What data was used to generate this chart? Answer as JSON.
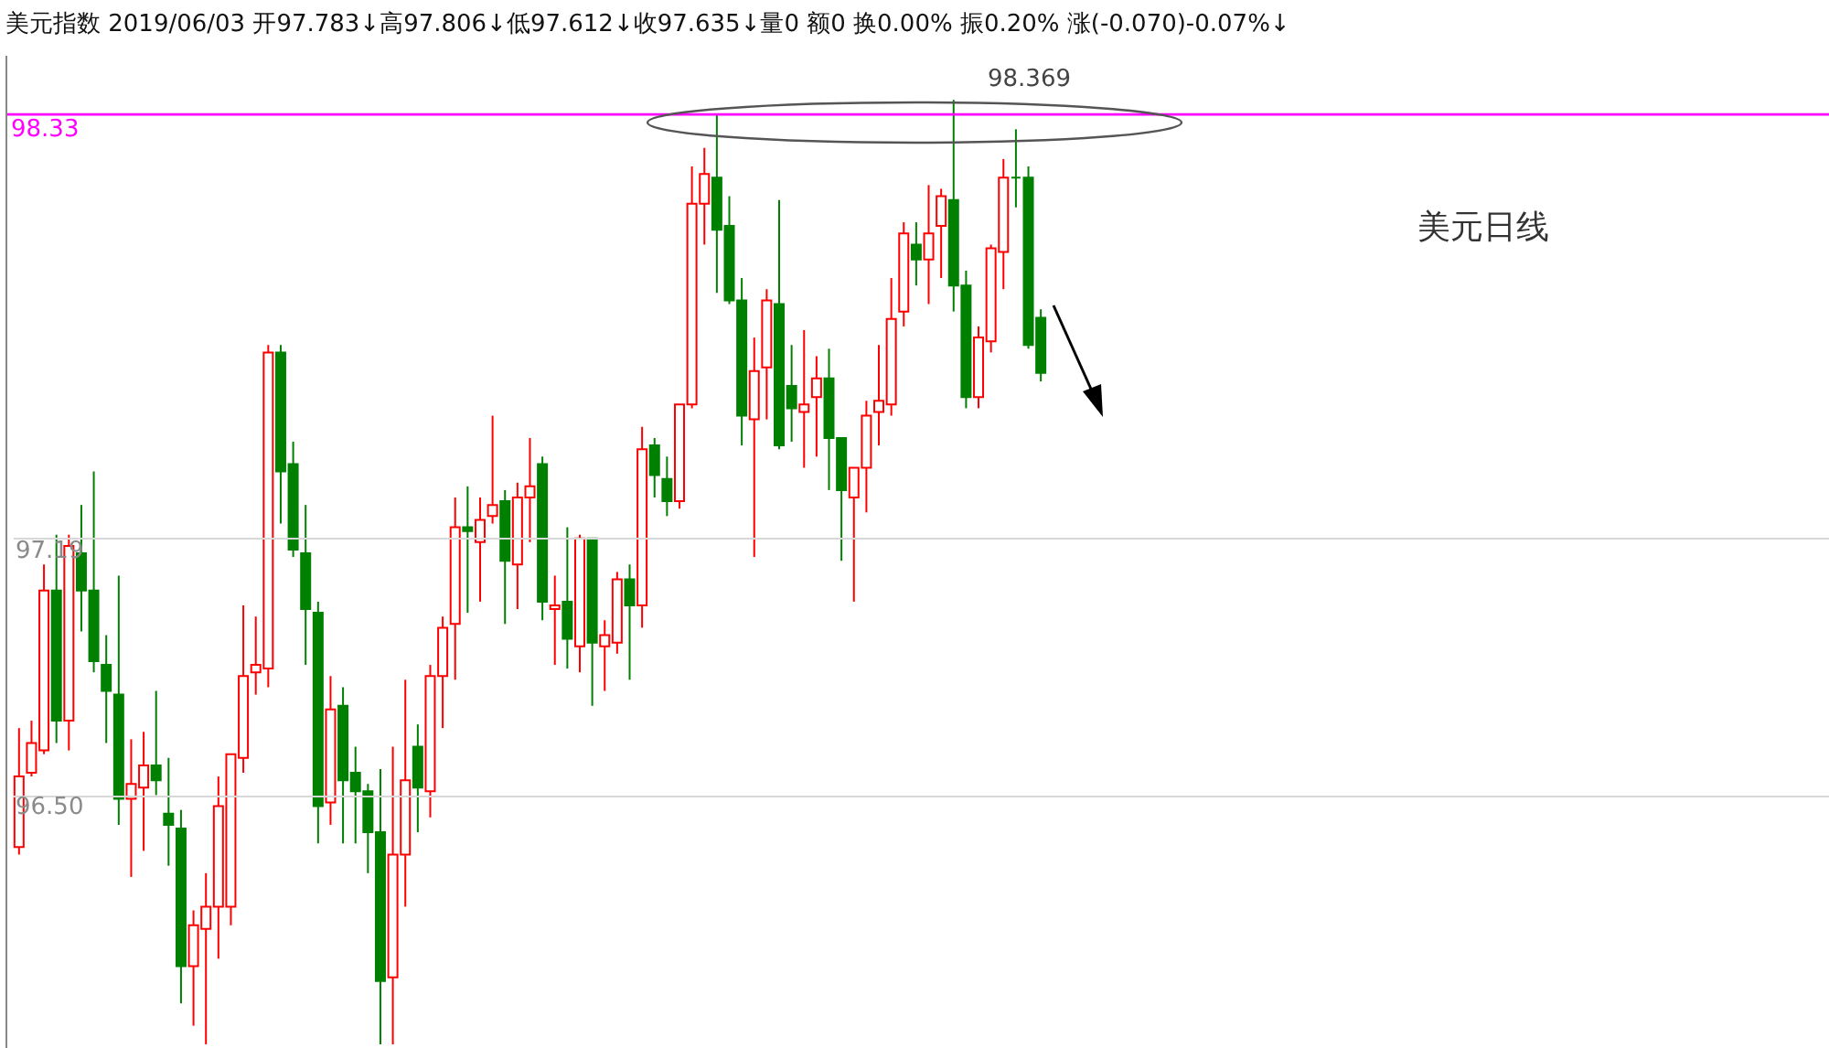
{
  "chart_data": {
    "type": "candlestick",
    "title": "美元指数 2019/06/03 开97.783↓高97.806↓低97.612↓收97.635↓量0 额0 换0.00% 振0.20% 涨(-0.070)-0.07%↓",
    "categories": [
      null,
      null,
      null,
      null,
      null,
      null,
      null,
      null,
      null,
      null,
      null,
      null,
      null,
      null,
      null,
      null,
      null,
      null,
      null,
      null,
      null,
      null,
      null,
      null,
      null,
      null,
      null,
      null,
      null,
      null,
      null,
      null,
      null,
      null,
      null,
      null,
      null,
      null,
      null,
      null,
      null,
      null,
      null,
      null,
      null,
      null,
      null,
      null,
      null,
      null,
      null,
      null,
      null,
      null,
      null,
      null,
      null,
      null,
      null,
      null,
      null,
      null,
      null,
      null,
      null,
      null,
      null,
      null,
      null,
      null,
      null,
      null,
      null,
      null,
      null,
      null,
      null,
      null,
      null,
      null,
      null,
      null,
      null
    ],
    "ohlc": [
      [
        96.36,
        96.68,
        96.34,
        96.55
      ],
      [
        96.56,
        96.7,
        96.55,
        96.64
      ],
      [
        96.62,
        97.12,
        96.61,
        97.05
      ],
      [
        97.05,
        97.2,
        96.64,
        96.7
      ],
      [
        96.7,
        97.2,
        96.62,
        97.17
      ],
      [
        97.15,
        97.28,
        96.94,
        97.05
      ],
      [
        97.05,
        97.37,
        96.83,
        96.86
      ],
      [
        96.85,
        96.93,
        96.64,
        96.78
      ],
      [
        96.77,
        97.09,
        96.42,
        96.49
      ],
      [
        96.49,
        96.65,
        96.28,
        96.53
      ],
      [
        96.52,
        96.67,
        96.35,
        96.58
      ],
      [
        96.58,
        96.78,
        96.5,
        96.54
      ],
      [
        96.45,
        96.6,
        96.31,
        96.42
      ],
      [
        96.41,
        96.46,
        95.94,
        96.04
      ],
      [
        96.04,
        96.19,
        95.88,
        96.15
      ],
      [
        96.14,
        96.29,
        95.83,
        96.2
      ],
      [
        96.2,
        96.55,
        96.06,
        96.47
      ],
      [
        96.2,
        96.61,
        96.15,
        96.61
      ],
      [
        96.6,
        97.01,
        96.56,
        96.82
      ],
      [
        96.83,
        96.98,
        96.77,
        96.85
      ],
      [
        96.84,
        97.71,
        96.79,
        97.69
      ],
      [
        97.69,
        97.71,
        97.23,
        97.37
      ],
      [
        97.39,
        97.45,
        97.14,
        97.16
      ],
      [
        97.15,
        97.28,
        96.85,
        97.0
      ],
      [
        96.99,
        97.02,
        96.37,
        96.47
      ],
      [
        96.48,
        96.82,
        96.42,
        96.73
      ],
      [
        96.74,
        96.79,
        96.37,
        96.54
      ],
      [
        96.56,
        96.63,
        96.37,
        96.51
      ],
      [
        96.51,
        96.53,
        96.29,
        96.4
      ],
      [
        96.4,
        96.57,
        95.83,
        96.0
      ],
      [
        96.01,
        96.63,
        95.83,
        96.34
      ],
      [
        96.34,
        96.81,
        96.2,
        96.54
      ],
      [
        96.63,
        96.69,
        96.4,
        96.52
      ],
      [
        96.51,
        96.85,
        96.44,
        96.82
      ],
      [
        96.82,
        96.98,
        96.68,
        96.95
      ],
      [
        96.96,
        97.3,
        96.81,
        97.22
      ],
      [
        97.22,
        97.33,
        96.99,
        97.21
      ],
      [
        97.18,
        97.3,
        97.02,
        97.24
      ],
      [
        97.25,
        97.52,
        97.23,
        97.28
      ],
      [
        97.29,
        97.32,
        96.96,
        97.13
      ],
      [
        97.12,
        97.34,
        97.0,
        97.3
      ],
      [
        97.3,
        97.46,
        97.18,
        97.33
      ],
      [
        97.39,
        97.41,
        96.97,
        97.02
      ],
      [
        97.0,
        97.09,
        96.85,
        97.01
      ],
      [
        97.02,
        97.22,
        96.84,
        96.92
      ],
      [
        96.9,
        97.2,
        96.83,
        97.19
      ],
      [
        97.19,
        97.19,
        96.74,
        96.91
      ],
      [
        96.9,
        96.97,
        96.78,
        96.93
      ],
      [
        96.91,
        97.1,
        96.88,
        97.08
      ],
      [
        97.08,
        97.12,
        96.81,
        97.01
      ],
      [
        97.01,
        97.49,
        96.95,
        97.43
      ],
      [
        97.44,
        97.46,
        97.3,
        97.36
      ],
      [
        97.35,
        97.41,
        97.25,
        97.29
      ],
      [
        97.29,
        97.55,
        97.27,
        97.55
      ],
      [
        97.55,
        98.19,
        97.54,
        98.09
      ],
      [
        98.09,
        98.24,
        97.98,
        98.17
      ],
      [
        98.16,
        98.33,
        97.85,
        98.02
      ],
      [
        98.03,
        98.11,
        97.82,
        97.83
      ],
      [
        97.83,
        97.89,
        97.44,
        97.52
      ],
      [
        97.51,
        97.73,
        97.14,
        97.64
      ],
      [
        97.65,
        97.86,
        97.51,
        97.83
      ],
      [
        97.82,
        98.1,
        97.43,
        97.44
      ],
      [
        97.6,
        97.71,
        97.45,
        97.54
      ],
      [
        97.53,
        97.75,
        97.38,
        97.55
      ],
      [
        97.57,
        97.68,
        97.41,
        97.62
      ],
      [
        97.62,
        97.7,
        97.32,
        97.46
      ],
      [
        97.46,
        97.46,
        97.13,
        97.32
      ],
      [
        97.3,
        97.38,
        97.02,
        97.38
      ],
      [
        97.38,
        97.56,
        97.26,
        97.52
      ],
      [
        97.53,
        97.71,
        97.44,
        97.56
      ],
      [
        97.55,
        97.89,
        97.52,
        97.78
      ],
      [
        97.8,
        98.04,
        97.76,
        98.01
      ],
      [
        97.98,
        98.04,
        97.87,
        97.94
      ],
      [
        97.94,
        98.14,
        97.82,
        98.01
      ],
      [
        98.03,
        98.13,
        97.89,
        98.11
      ],
      [
        98.1,
        98.369,
        97.8,
        97.87
      ],
      [
        97.87,
        97.91,
        97.54,
        97.57
      ],
      [
        97.57,
        97.76,
        97.54,
        97.73
      ],
      [
        97.72,
        97.98,
        97.69,
        97.97
      ],
      [
        97.96,
        98.21,
        97.86,
        98.16
      ],
      [
        98.16,
        98.29,
        98.08,
        98.16
      ],
      [
        98.16,
        98.19,
        97.7,
        97.71
      ],
      [
        97.783,
        97.806,
        97.612,
        97.635
      ]
    ],
    "colors": [
      "#ff0000",
      "#ff0000",
      "#ff0000",
      "#008000",
      "#ff0000",
      "#008000",
      "#008000",
      "#008000",
      "#008000",
      "#ff0000",
      "#ff0000",
      "#008000",
      "#008000",
      "#008000",
      "#ff0000",
      "#ff0000",
      "#ff0000",
      "#ff0000",
      "#ff0000",
      "#ff0000",
      "#ff0000",
      "#008000",
      "#008000",
      "#008000",
      "#008000",
      "#ff0000",
      "#008000",
      "#008000",
      "#008000",
      "#008000",
      "#ff0000",
      "#ff0000",
      "#008000",
      "#ff0000",
      "#ff0000",
      "#ff0000",
      "#008000",
      "#ff0000",
      "#ff0000",
      "#008000",
      "#ff0000",
      "#ff0000",
      "#008000",
      "#ff0000",
      "#008000",
      "#ff0000",
      "#008000",
      "#ff0000",
      "#ff0000",
      "#008000",
      "#ff0000",
      "#008000",
      "#008000",
      "#ff0000",
      "#ff0000",
      "#ff0000",
      "#008000",
      "#008000",
      "#008000",
      "#ff0000",
      "#ff0000",
      "#008000",
      "#008000",
      "#ff0000",
      "#ff0000",
      "#008000",
      "#008000",
      "#ff0000",
      "#ff0000",
      "#ff0000",
      "#ff0000",
      "#ff0000",
      "#008000",
      "#ff0000",
      "#ff0000",
      "#008000",
      "#008000",
      "#ff0000",
      "#ff0000",
      "#ff0000",
      "#008000",
      "#008000",
      "#008000"
    ],
    "ylim": [
      95.82,
      98.49
    ],
    "yticks": [
      {
        "value": 96.5,
        "label": "96.50"
      },
      97.19
    ],
    "grid": "y",
    "tick_labels": "y",
    "ref_lines": [
      {
        "axis": "y",
        "value": 98.33,
        "label": "98.33",
        "color": "#ff00ff"
      }
    ],
    "annotations": [
      "98.369",
      "美元日线"
    ]
  }
}
